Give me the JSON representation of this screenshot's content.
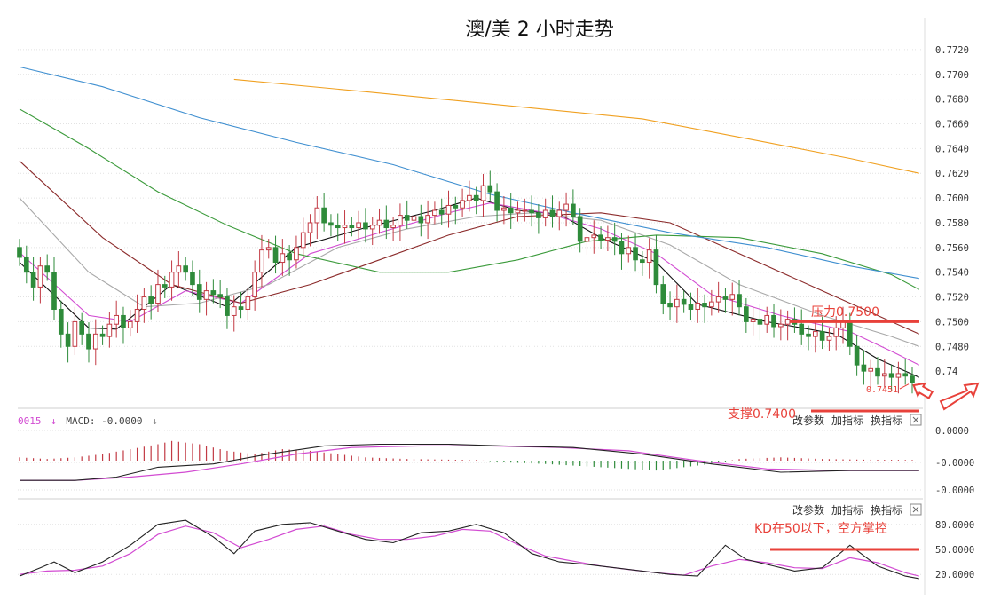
{
  "title": "澳/美 2 小时走势",
  "colors": {
    "up": "#c23a44",
    "down": "#2e8b3a",
    "annotation": "#e8413a",
    "ma5": "#111111",
    "ma10": "#d24bd2",
    "ma20": "#a8a8a8",
    "ma30": "#8b2a2a",
    "ma60": "#3a9a3a",
    "ma120": "#3f8fd0",
    "ma250": "#f0a020"
  },
  "toolbar": {
    "modify_params": "改参数",
    "add_indicator": "加指标",
    "switch_indicator": "换指标",
    "close_icon": "close-icon"
  },
  "macd_label": {
    "prefix_value": "0015",
    "prefix_arrow": "↓",
    "name": "MACD:",
    "value": "-0.0000",
    "arrow": "↓"
  },
  "annotations": {
    "resistance": "压力0.7500",
    "support": "支撑0.7400",
    "kd_note": "KD在50以下，空方掌控",
    "last_price": "0.7451"
  },
  "chart_data": [
    {
      "type": "candlestick",
      "panel": "price",
      "ylim": [
        0.744,
        0.773
      ],
      "yticks": [
        "0.7720",
        "0.7700",
        "0.7680",
        "0.7660",
        "0.7640",
        "0.7620",
        "0.7600",
        "0.7580",
        "0.7560",
        "0.7540",
        "0.7520",
        "0.7500",
        "0.7480"
      ],
      "yticks_partial": "0.74",
      "resistance_level": 0.75,
      "support_level": 0.74,
      "last_price": 0.7451,
      "closes": [
        0.7552,
        0.754,
        0.7528,
        0.7545,
        0.754,
        0.751,
        0.749,
        0.748,
        0.75,
        0.749,
        0.7478,
        0.749,
        0.7488,
        0.7498,
        0.7505,
        0.7495,
        0.75,
        0.751,
        0.752,
        0.7515,
        0.753,
        0.7528,
        0.754,
        0.7545,
        0.754,
        0.753,
        0.7518,
        0.7525,
        0.7522,
        0.752,
        0.7505,
        0.7512,
        0.751,
        0.752,
        0.754,
        0.7558,
        0.756,
        0.7548,
        0.7555,
        0.755,
        0.756,
        0.7572,
        0.758,
        0.7592,
        0.758,
        0.7578,
        0.7576,
        0.7578,
        0.7576,
        0.758,
        0.7575,
        0.7578,
        0.7582,
        0.7576,
        0.7578,
        0.7586,
        0.7582,
        0.7585,
        0.758,
        0.7586,
        0.759,
        0.7587,
        0.7594,
        0.7592,
        0.7598,
        0.7602,
        0.7598,
        0.761,
        0.7605,
        0.759,
        0.7592,
        0.7588,
        0.759,
        0.759,
        0.7588,
        0.7584,
        0.759,
        0.7585,
        0.759,
        0.7595,
        0.7585,
        0.7565,
        0.7568,
        0.757,
        0.7566,
        0.7568,
        0.7565,
        0.7555,
        0.756,
        0.755,
        0.7548,
        0.7558,
        0.753,
        0.7515,
        0.7512,
        0.7518,
        0.7514,
        0.751,
        0.7515,
        0.7512,
        0.7516,
        0.752,
        0.7518,
        0.7522,
        0.7512,
        0.75,
        0.7502,
        0.7498,
        0.7505,
        0.7496,
        0.7498,
        0.7502,
        0.7498,
        0.749,
        0.7488,
        0.7492,
        0.7485,
        0.7488,
        0.7495,
        0.75,
        0.748,
        0.7465,
        0.746,
        0.7462,
        0.7456,
        0.7458,
        0.7455,
        0.7458,
        0.7456,
        0.7451
      ],
      "ma": [
        {
          "key": "ma5",
          "values": [
            [
              0,
              0.7548
            ],
            [
              10,
              0.7495
            ],
            [
              14,
              0.7494
            ],
            [
              22,
              0.753
            ],
            [
              30,
              0.7512
            ],
            [
              40,
              0.756
            ],
            [
              50,
              0.7576
            ],
            [
              60,
              0.759
            ],
            [
              66,
              0.76
            ],
            [
              72,
              0.759
            ],
            [
              78,
              0.7587
            ],
            [
              84,
              0.7568
            ],
            [
              92,
              0.7548
            ],
            [
              98,
              0.7514
            ],
            [
              108,
              0.75
            ],
            [
              118,
              0.749
            ],
            [
              124,
              0.747
            ],
            [
              130,
              0.7455
            ]
          ]
        },
        {
          "key": "ma10",
          "values": [
            [
              0,
              0.7556
            ],
            [
              10,
              0.7505
            ],
            [
              16,
              0.75
            ],
            [
              24,
              0.7525
            ],
            [
              32,
              0.7515
            ],
            [
              42,
              0.7555
            ],
            [
              52,
              0.7572
            ],
            [
              62,
              0.7588
            ],
            [
              68,
              0.7596
            ],
            [
              76,
              0.7588
            ],
            [
              84,
              0.7575
            ],
            [
              92,
              0.7555
            ],
            [
              100,
              0.7522
            ],
            [
              110,
              0.7505
            ],
            [
              120,
              0.7492
            ],
            [
              126,
              0.7476
            ],
            [
              130,
              0.7465
            ]
          ]
        },
        {
          "key": "ma20",
          "values": [
            [
              0,
              0.76
            ],
            [
              10,
              0.754
            ],
            [
              18,
              0.7512
            ],
            [
              26,
              0.7515
            ],
            [
              36,
              0.753
            ],
            [
              46,
              0.756
            ],
            [
              56,
              0.7575
            ],
            [
              66,
              0.7585
            ],
            [
              74,
              0.7588
            ],
            [
              84,
              0.7582
            ],
            [
              94,
              0.7562
            ],
            [
              104,
              0.753
            ],
            [
              116,
              0.7505
            ],
            [
              126,
              0.7488
            ],
            [
              130,
              0.748
            ]
          ]
        },
        {
          "key": "ma30",
          "values": [
            [
              0,
              0.763
            ],
            [
              12,
              0.7568
            ],
            [
              22,
              0.753
            ],
            [
              32,
              0.7515
            ],
            [
              42,
              0.753
            ],
            [
              52,
              0.755
            ],
            [
              62,
              0.757
            ],
            [
              72,
              0.7585
            ],
            [
              84,
              0.7588
            ],
            [
              94,
              0.758
            ],
            [
              104,
              0.7555
            ],
            [
              116,
              0.7525
            ],
            [
              126,
              0.75
            ],
            [
              130,
              0.749
            ]
          ]
        },
        {
          "key": "ma60",
          "values": [
            [
              0,
              0.7672
            ],
            [
              10,
              0.764
            ],
            [
              20,
              0.7605
            ],
            [
              30,
              0.7578
            ],
            [
              40,
              0.7555
            ],
            [
              52,
              0.754
            ],
            [
              62,
              0.754
            ],
            [
              72,
              0.755
            ],
            [
              82,
              0.7565
            ],
            [
              92,
              0.757
            ],
            [
              104,
              0.7568
            ],
            [
              116,
              0.7555
            ],
            [
              126,
              0.7538
            ],
            [
              130,
              0.7526
            ]
          ]
        },
        {
          "key": "ma120",
          "values": [
            [
              0,
              0.7706
            ],
            [
              12,
              0.769
            ],
            [
              26,
              0.7665
            ],
            [
              40,
              0.7645
            ],
            [
              54,
              0.7627
            ],
            [
              68,
              0.7603
            ],
            [
              80,
              0.7588
            ],
            [
              94,
              0.7572
            ],
            [
              108,
              0.756
            ],
            [
              120,
              0.7545
            ],
            [
              130,
              0.7535
            ]
          ]
        },
        {
          "key": "ma250",
          "values": [
            [
              31,
              0.7696
            ],
            [
              50,
              0.7686
            ],
            [
              70,
              0.7675
            ],
            [
              90,
              0.7664
            ],
            [
              108,
              0.7645
            ],
            [
              120,
              0.7632
            ],
            [
              130,
              0.762
            ]
          ]
        }
      ]
    },
    {
      "type": "bar+line",
      "panel": "MACD",
      "ylim": [
        -0.0001,
        0.0001
      ],
      "yticks": [
        "0.0000",
        "-0.0000",
        "-0.0000"
      ],
      "dif": [
        [
          0,
          -6e-05
        ],
        [
          8,
          -6e-05
        ],
        [
          14,
          -5e-05
        ],
        [
          20,
          -2e-05
        ],
        [
          28,
          -1e-05
        ],
        [
          36,
          2e-05
        ],
        [
          44,
          4.5e-05
        ],
        [
          52,
          5e-05
        ],
        [
          62,
          5e-05
        ],
        [
          70,
          4.5e-05
        ],
        [
          80,
          4e-05
        ],
        [
          90,
          2e-05
        ],
        [
          100,
          -1e-05
        ],
        [
          110,
          -3.5e-05
        ],
        [
          120,
          -3e-05
        ],
        [
          130,
          -3e-05
        ]
      ],
      "dea": [
        [
          0,
          -6e-05
        ],
        [
          8,
          -6e-05
        ],
        [
          16,
          -5e-05
        ],
        [
          24,
          -3.5e-05
        ],
        [
          32,
          -1e-05
        ],
        [
          40,
          2e-05
        ],
        [
          48,
          4e-05
        ],
        [
          58,
          4.5e-05
        ],
        [
          68,
          4.5e-05
        ],
        [
          78,
          4e-05
        ],
        [
          88,
          3e-05
        ],
        [
          98,
          0.0
        ],
        [
          108,
          -2.5e-05
        ],
        [
          118,
          -3e-05
        ],
        [
          130,
          -3e-05
        ]
      ],
      "histogram": [
        [
          0,
          1e-05
        ],
        [
          4,
          5e-06
        ],
        [
          8,
          1e-05
        ],
        [
          12,
          2e-05
        ],
        [
          16,
          3.5e-05
        ],
        [
          20,
          5e-05
        ],
        [
          22,
          6e-05
        ],
        [
          26,
          5e-05
        ],
        [
          30,
          3e-05
        ],
        [
          34,
          2e-05
        ],
        [
          38,
          3.5e-05
        ],
        [
          42,
          3e-05
        ],
        [
          46,
          2e-05
        ],
        [
          50,
          1e-05
        ],
        [
          56,
          5e-06
        ],
        [
          62,
          3e-06
        ],
        [
          66,
          2e-06
        ],
        [
          70,
          -5e-06
        ],
        [
          76,
          -1e-05
        ],
        [
          80,
          -1.5e-05
        ],
        [
          84,
          -2e-05
        ],
        [
          88,
          -2.5e-05
        ],
        [
          92,
          -3e-05
        ],
        [
          96,
          -2e-05
        ],
        [
          100,
          -1e-05
        ],
        [
          104,
          5e-06
        ],
        [
          110,
          1e-05
        ],
        [
          116,
          5e-06
        ],
        [
          122,
          3e-06
        ],
        [
          130,
          2e-06
        ]
      ]
    },
    {
      "type": "line",
      "panel": "KD",
      "ylim": [
        0,
        100
      ],
      "yticks": [
        "80.0000",
        "50.0000",
        "20.0000"
      ],
      "reference_level": 50,
      "k": [
        [
          0,
          18
        ],
        [
          3,
          28
        ],
        [
          5,
          35
        ],
        [
          8,
          22
        ],
        [
          12,
          35
        ],
        [
          16,
          55
        ],
        [
          20,
          80
        ],
        [
          24,
          85
        ],
        [
          28,
          65
        ],
        [
          31,
          45
        ],
        [
          34,
          72
        ],
        [
          38,
          80
        ],
        [
          42,
          82
        ],
        [
          46,
          72
        ],
        [
          50,
          62
        ],
        [
          54,
          58
        ],
        [
          58,
          70
        ],
        [
          62,
          72
        ],
        [
          66,
          80
        ],
        [
          70,
          70
        ],
        [
          74,
          45
        ],
        [
          78,
          35
        ],
        [
          82,
          32
        ],
        [
          86,
          28
        ],
        [
          90,
          24
        ],
        [
          94,
          20
        ],
        [
          98,
          18
        ],
        [
          102,
          55
        ],
        [
          105,
          38
        ],
        [
          108,
          32
        ],
        [
          112,
          24
        ],
        [
          116,
          28
        ],
        [
          120,
          55
        ],
        [
          124,
          30
        ],
        [
          128,
          18
        ],
        [
          130,
          15
        ]
      ],
      "d": [
        [
          0,
          20
        ],
        [
          4,
          24
        ],
        [
          8,
          25
        ],
        [
          12,
          30
        ],
        [
          16,
          45
        ],
        [
          20,
          68
        ],
        [
          24,
          78
        ],
        [
          28,
          70
        ],
        [
          32,
          52
        ],
        [
          36,
          62
        ],
        [
          40,
          74
        ],
        [
          44,
          78
        ],
        [
          48,
          68
        ],
        [
          52,
          62
        ],
        [
          56,
          62
        ],
        [
          60,
          66
        ],
        [
          64,
          74
        ],
        [
          68,
          72
        ],
        [
          72,
          56
        ],
        [
          76,
          42
        ],
        [
          80,
          36
        ],
        [
          84,
          30
        ],
        [
          88,
          26
        ],
        [
          92,
          22
        ],
        [
          96,
          19
        ],
        [
          100,
          30
        ],
        [
          104,
          38
        ],
        [
          108,
          34
        ],
        [
          112,
          28
        ],
        [
          116,
          27
        ],
        [
          120,
          40
        ],
        [
          124,
          34
        ],
        [
          128,
          22
        ],
        [
          130,
          18
        ]
      ]
    }
  ]
}
